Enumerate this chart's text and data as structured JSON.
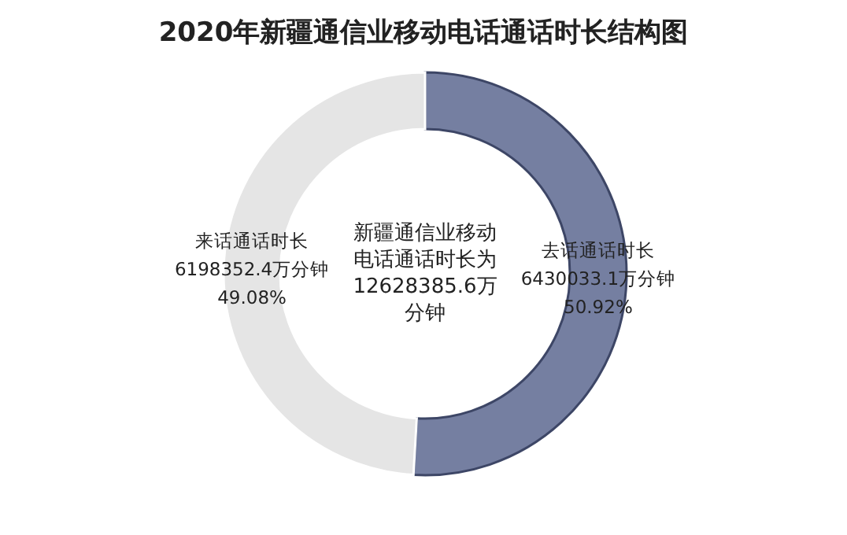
{
  "chart_data": {
    "type": "donut",
    "title": "2020年新疆通信业移动电话通话时长结构图",
    "categories": [
      "去话通话时长",
      "来话通话时长"
    ],
    "values": [
      6430033.1,
      6198352.4
    ],
    "colors": [
      "#757fa1",
      "#e5e5e5"
    ],
    "value_labels": [
      "6430033.1万分钟\n50.92%",
      "6198352.4万分钟\n49.08%"
    ],
    "annotations": [
      "新疆通信业移动电话通话时长为12628385.6万分钟"
    ]
  }
}
